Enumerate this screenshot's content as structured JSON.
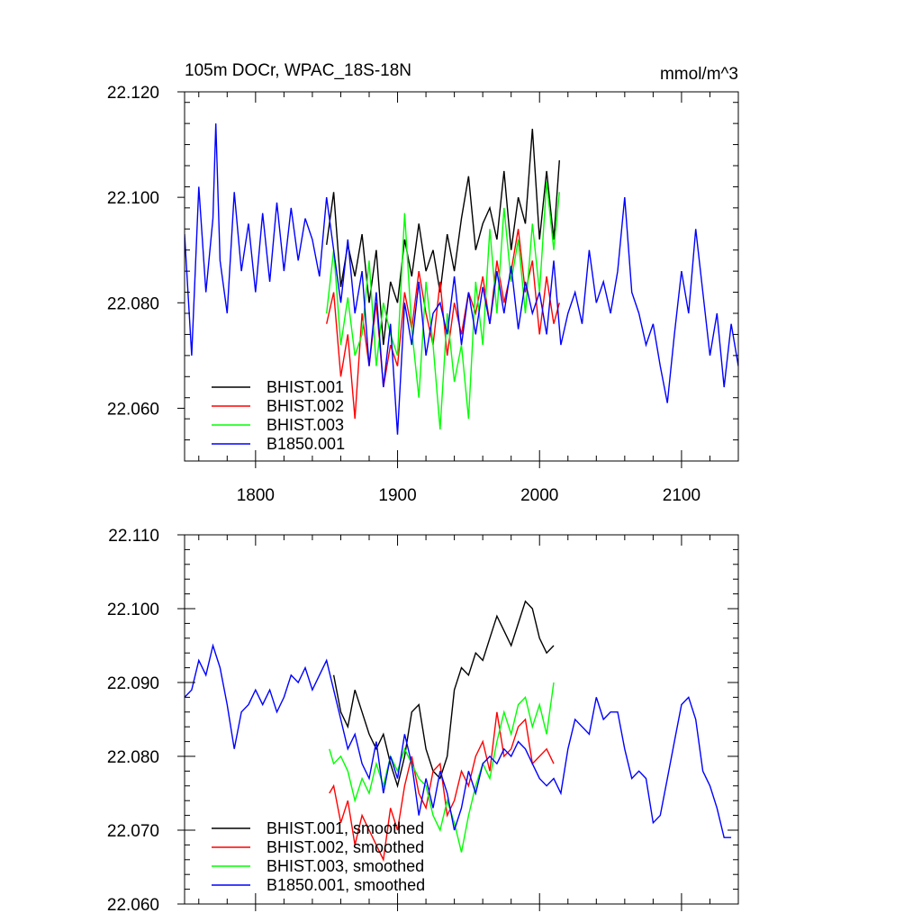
{
  "chart_data": [
    {
      "type": "line",
      "title": "105m DOCr, WPAC_18S-18N",
      "units": "mmol/m^3",
      "xlim": [
        1750,
        2140
      ],
      "ylim": [
        22.05,
        22.12
      ],
      "y_ticks": [
        22.06,
        22.08,
        22.1,
        22.12
      ],
      "y_tick_labels": [
        "22.060",
        "22.080",
        "22.100",
        "22.120"
      ],
      "x_ticks": [
        1800,
        1900,
        2000,
        2100
      ],
      "x_tick_labels": [
        "1800",
        "1900",
        "2000",
        "2100"
      ],
      "legend_position": "lower-left",
      "series": [
        {
          "name": "BHIST.001",
          "color": "#000000",
          "x": [
            1850,
            1855,
            1860,
            1865,
            1870,
            1875,
            1880,
            1885,
            1890,
            1895,
            1900,
            1905,
            1910,
            1915,
            1920,
            1925,
            1930,
            1935,
            1940,
            1945,
            1950,
            1955,
            1960,
            1965,
            1970,
            1975,
            1980,
            1985,
            1990,
            1995,
            2000,
            2005,
            2010,
            2014
          ],
          "y": [
            22.091,
            22.101,
            22.083,
            22.091,
            22.085,
            22.093,
            22.08,
            22.09,
            22.072,
            22.084,
            22.08,
            22.092,
            22.085,
            22.095,
            22.086,
            22.09,
            22.082,
            22.093,
            22.086,
            22.096,
            22.104,
            22.09,
            22.095,
            22.098,
            22.092,
            22.105,
            22.09,
            22.1,
            22.095,
            22.113,
            22.092,
            22.105,
            22.092,
            22.107
          ]
        },
        {
          "name": "BHIST.002",
          "color": "#ff0000",
          "x": [
            1850,
            1855,
            1860,
            1865,
            1870,
            1875,
            1880,
            1885,
            1890,
            1895,
            1900,
            1905,
            1910,
            1915,
            1920,
            1925,
            1930,
            1935,
            1940,
            1945,
            1950,
            1955,
            1960,
            1965,
            1970,
            1975,
            1980,
            1985,
            1990,
            1995,
            2000,
            2005,
            2010,
            2014
          ],
          "y": [
            22.076,
            22.082,
            22.066,
            22.074,
            22.058,
            22.078,
            22.068,
            22.08,
            22.064,
            22.072,
            22.068,
            22.082,
            22.075,
            22.086,
            22.078,
            22.072,
            22.084,
            22.07,
            22.08,
            22.074,
            22.082,
            22.078,
            22.085,
            22.076,
            22.088,
            22.08,
            22.086,
            22.094,
            22.082,
            22.088,
            22.074,
            22.085,
            22.076,
            22.08
          ]
        },
        {
          "name": "BHIST.003",
          "color": "#00ff00",
          "x": [
            1850,
            1855,
            1860,
            1865,
            1870,
            1875,
            1880,
            1885,
            1890,
            1895,
            1900,
            1905,
            1910,
            1915,
            1920,
            1925,
            1930,
            1935,
            1940,
            1945,
            1950,
            1955,
            1960,
            1965,
            1970,
            1975,
            1980,
            1985,
            1990,
            1995,
            2000,
            2005,
            2010,
            2014
          ],
          "y": [
            22.078,
            22.09,
            22.072,
            22.081,
            22.07,
            22.074,
            22.088,
            22.068,
            22.08,
            22.074,
            22.07,
            22.097,
            22.075,
            22.062,
            22.084,
            22.072,
            22.056,
            22.078,
            22.065,
            22.072,
            22.058,
            22.084,
            22.072,
            22.094,
            22.078,
            22.098,
            22.084,
            22.092,
            22.078,
            22.095,
            22.082,
            22.103,
            22.09,
            22.101
          ]
        },
        {
          "name": "B1850.001",
          "color": "#0000ff",
          "x": [
            1750,
            1755,
            1760,
            1765,
            1770,
            1772,
            1775,
            1780,
            1785,
            1790,
            1795,
            1800,
            1805,
            1810,
            1815,
            1820,
            1825,
            1830,
            1835,
            1840,
            1845,
            1850,
            1855,
            1860,
            1865,
            1870,
            1875,
            1880,
            1885,
            1890,
            1895,
            1900,
            1905,
            1910,
            1915,
            1920,
            1925,
            1930,
            1935,
            1940,
            1945,
            1950,
            1955,
            1960,
            1965,
            1970,
            1975,
            1980,
            1985,
            1990,
            1995,
            2000,
            2005,
            2010,
            2015,
            2020,
            2025,
            2030,
            2035,
            2040,
            2045,
            2050,
            2055,
            2060,
            2065,
            2070,
            2075,
            2080,
            2085,
            2090,
            2095,
            2100,
            2105,
            2110,
            2115,
            2120,
            2125,
            2130,
            2135,
            2140
          ],
          "y": [
            22.093,
            22.07,
            22.102,
            22.082,
            22.096,
            22.114,
            22.088,
            22.078,
            22.101,
            22.086,
            22.095,
            22.082,
            22.097,
            22.084,
            22.099,
            22.086,
            22.098,
            22.088,
            22.096,
            22.092,
            22.085,
            22.1,
            22.09,
            22.08,
            22.092,
            22.078,
            22.086,
            22.068,
            22.082,
            22.064,
            22.076,
            22.055,
            22.08,
            22.072,
            22.084,
            22.07,
            22.078,
            22.08,
            22.074,
            22.085,
            22.072,
            22.082,
            22.074,
            22.083,
            22.076,
            22.086,
            22.078,
            22.087,
            22.075,
            22.084,
            22.078,
            22.082,
            22.074,
            22.088,
            22.072,
            22.078,
            22.082,
            22.076,
            22.09,
            22.08,
            22.084,
            22.078,
            22.086,
            22.1,
            22.082,
            22.078,
            22.072,
            22.076,
            22.068,
            22.061,
            22.074,
            22.086,
            22.078,
            22.094,
            22.082,
            22.07,
            22.078,
            22.064,
            22.076,
            22.068
          ]
        }
      ]
    },
    {
      "type": "line",
      "xlim": [
        1750,
        2140
      ],
      "ylim": [
        22.06,
        22.11
      ],
      "y_ticks": [
        22.06,
        22.07,
        22.08,
        22.09,
        22.1,
        22.11
      ],
      "y_tick_labels": [
        "22.060",
        "22.070",
        "22.080",
        "22.090",
        "22.100",
        "22.110"
      ],
      "x_ticks": [
        1800,
        1900,
        2000,
        2100
      ],
      "legend_position": "lower-left",
      "series": [
        {
          "name": "BHIST.001, smoothed",
          "color": "#000000",
          "x": [
            1855,
            1860,
            1865,
            1870,
            1875,
            1880,
            1885,
            1890,
            1895,
            1900,
            1905,
            1910,
            1915,
            1920,
            1925,
            1930,
            1935,
            1940,
            1945,
            1950,
            1955,
            1960,
            1965,
            1970,
            1975,
            1980,
            1985,
            1990,
            1995,
            2000,
            2005,
            2010
          ],
          "y": [
            22.091,
            22.086,
            22.084,
            22.089,
            22.086,
            22.083,
            22.081,
            22.083,
            22.079,
            22.076,
            22.08,
            22.086,
            22.087,
            22.081,
            22.078,
            22.077,
            22.08,
            22.089,
            22.092,
            22.091,
            22.094,
            22.093,
            22.096,
            22.099,
            22.097,
            22.095,
            22.098,
            22.101,
            22.1,
            22.096,
            22.094,
            22.095
          ]
        },
        {
          "name": "BHIST.002, smoothed",
          "color": "#ff0000",
          "x": [
            1852,
            1855,
            1860,
            1865,
            1870,
            1875,
            1880,
            1885,
            1890,
            1895,
            1900,
            1905,
            1910,
            1915,
            1920,
            1925,
            1930,
            1935,
            1940,
            1945,
            1950,
            1955,
            1960,
            1965,
            1970,
            1975,
            1980,
            1985,
            1990,
            1995,
            2000,
            2005,
            2010
          ],
          "y": [
            22.075,
            22.076,
            22.071,
            22.074,
            22.068,
            22.072,
            22.07,
            22.068,
            22.066,
            22.073,
            22.07,
            22.076,
            22.08,
            22.075,
            22.073,
            22.078,
            22.079,
            22.072,
            22.074,
            22.078,
            22.076,
            22.08,
            22.082,
            22.078,
            22.086,
            22.08,
            22.081,
            22.084,
            22.085,
            22.079,
            22.08,
            22.081,
            22.079
          ]
        },
        {
          "name": "BHIST.003, smoothed",
          "color": "#00ff00",
          "x": [
            1852,
            1855,
            1860,
            1865,
            1870,
            1875,
            1880,
            1885,
            1890,
            1895,
            1900,
            1905,
            1910,
            1915,
            1920,
            1925,
            1930,
            1935,
            1940,
            1945,
            1950,
            1955,
            1960,
            1965,
            1970,
            1975,
            1980,
            1985,
            1990,
            1995,
            2000,
            2005,
            2010
          ],
          "y": [
            22.081,
            22.079,
            22.08,
            22.078,
            22.074,
            22.077,
            22.075,
            22.079,
            22.076,
            22.08,
            22.078,
            22.081,
            22.079,
            22.077,
            22.076,
            22.072,
            22.07,
            22.074,
            22.071,
            22.067,
            22.072,
            22.076,
            22.079,
            22.077,
            22.082,
            22.086,
            22.083,
            22.087,
            22.088,
            22.084,
            22.087,
            22.083,
            22.09
          ]
        },
        {
          "name": "B1850.001, smoothed",
          "color": "#0000ff",
          "x": [
            1750,
            1755,
            1760,
            1765,
            1770,
            1775,
            1780,
            1785,
            1790,
            1795,
            1800,
            1805,
            1810,
            1815,
            1820,
            1825,
            1830,
            1835,
            1840,
            1845,
            1850,
            1855,
            1860,
            1865,
            1870,
            1875,
            1880,
            1885,
            1890,
            1895,
            1900,
            1905,
            1910,
            1915,
            1920,
            1925,
            1930,
            1935,
            1940,
            1945,
            1950,
            1955,
            1960,
            1965,
            1970,
            1975,
            1980,
            1985,
            1990,
            1995,
            2000,
            2005,
            2010,
            2015,
            2020,
            2025,
            2030,
            2035,
            2040,
            2045,
            2050,
            2055,
            2060,
            2065,
            2070,
            2075,
            2080,
            2085,
            2090,
            2095,
            2100,
            2105,
            2110,
            2115,
            2120,
            2125,
            2130,
            2135
          ],
          "y": [
            22.088,
            22.089,
            22.093,
            22.091,
            22.095,
            22.092,
            22.087,
            22.081,
            22.086,
            22.087,
            22.089,
            22.087,
            22.089,
            22.086,
            22.088,
            22.091,
            22.09,
            22.092,
            22.089,
            22.091,
            22.093,
            22.089,
            22.085,
            22.081,
            22.083,
            22.079,
            22.077,
            22.082,
            22.075,
            22.08,
            22.077,
            22.083,
            22.079,
            22.072,
            22.077,
            22.073,
            22.078,
            22.075,
            22.07,
            22.073,
            22.078,
            22.075,
            22.079,
            22.08,
            22.079,
            22.081,
            22.08,
            22.082,
            22.081,
            22.079,
            22.077,
            22.076,
            22.077,
            22.075,
            22.081,
            22.085,
            22.084,
            22.083,
            22.088,
            22.085,
            22.086,
            22.086,
            22.081,
            22.077,
            22.078,
            22.077,
            22.071,
            22.072,
            22.077,
            22.082,
            22.087,
            22.088,
            22.085,
            22.078,
            22.076,
            22.073,
            22.069,
            22.069
          ]
        }
      ]
    }
  ]
}
